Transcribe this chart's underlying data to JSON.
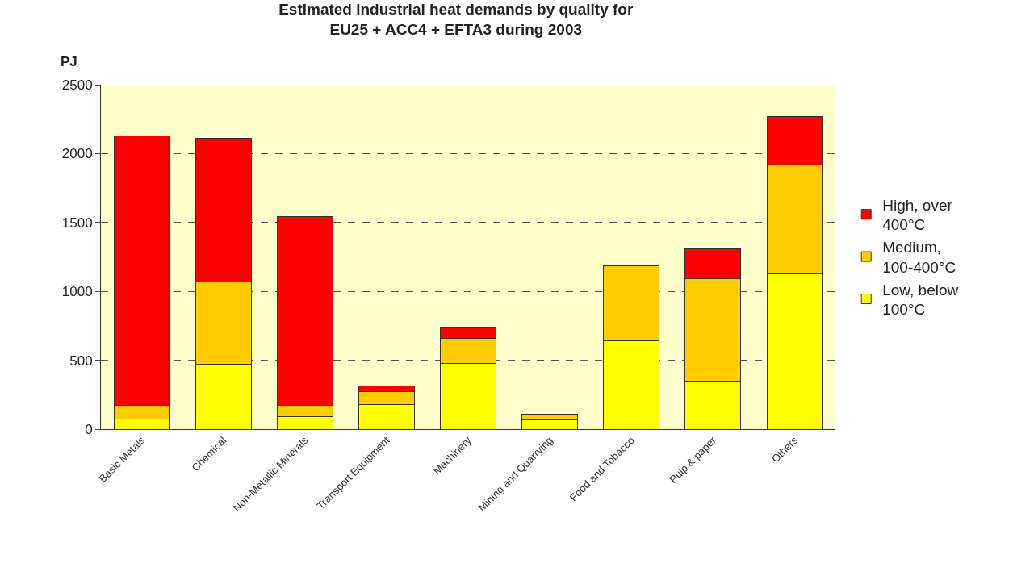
{
  "chart_data": {
    "type": "bar",
    "title": "Estimated industrial heat demands by quality for\nEU25 + ACC4 + EFTA3 during 2003",
    "ylabel": "PJ",
    "categories": [
      "Basic Metals",
      "Chemical",
      "Non-Metallic Minerals",
      "Transport Equipment",
      "Machinery",
      "Mining and Quarrying",
      "Food and Tobacco",
      "Pulp & paper",
      "Others"
    ],
    "stacked": true,
    "series": [
      {
        "name": "Low, below 100°C",
        "color": "#ffff00",
        "values": [
          75,
          470,
          90,
          180,
          480,
          70,
          640,
          350,
          1125
        ]
      },
      {
        "name": "Medium, 100-400°C",
        "color": "#ffcc00",
        "values": [
          100,
          600,
          85,
          95,
          180,
          40,
          545,
          740,
          795
        ]
      },
      {
        "name": "High, over 400°C",
        "color": "#ff0000",
        "values": [
          1955,
          1040,
          1365,
          40,
          80,
          null,
          null,
          220,
          350
        ]
      }
    ],
    "ylim": [
      0,
      2500
    ],
    "yticks": [
      0,
      500,
      1000,
      1500,
      2000,
      2500
    ],
    "grid": "y",
    "legend": "right"
  }
}
